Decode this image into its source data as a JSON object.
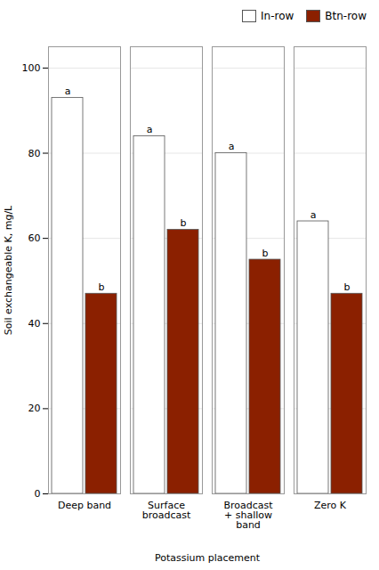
{
  "chart_data": {
    "type": "bar",
    "categories": [
      "Deep band",
      "Surface\nbroadcast",
      "Broadcast\n+ shallow\nband",
      "Zero K"
    ],
    "series": [
      {
        "name": "In-row",
        "color": "#FFFFFF",
        "values": [
          93,
          84,
          80,
          64
        ],
        "labels": [
          "a",
          "a",
          "a",
          "a"
        ]
      },
      {
        "name": "Btn-row",
        "color": "#8B2000",
        "values": [
          47,
          62,
          55,
          47
        ],
        "labels": [
          "b",
          "b",
          "b",
          "b"
        ]
      }
    ],
    "xlabel": "Potassium placement",
    "ylabel": "Soil exchangeable K, mg/L",
    "ylim": [
      0,
      105
    ],
    "yticks": [
      0,
      20,
      40,
      60,
      80,
      100
    ],
    "grid": true,
    "legend": "upper right"
  }
}
